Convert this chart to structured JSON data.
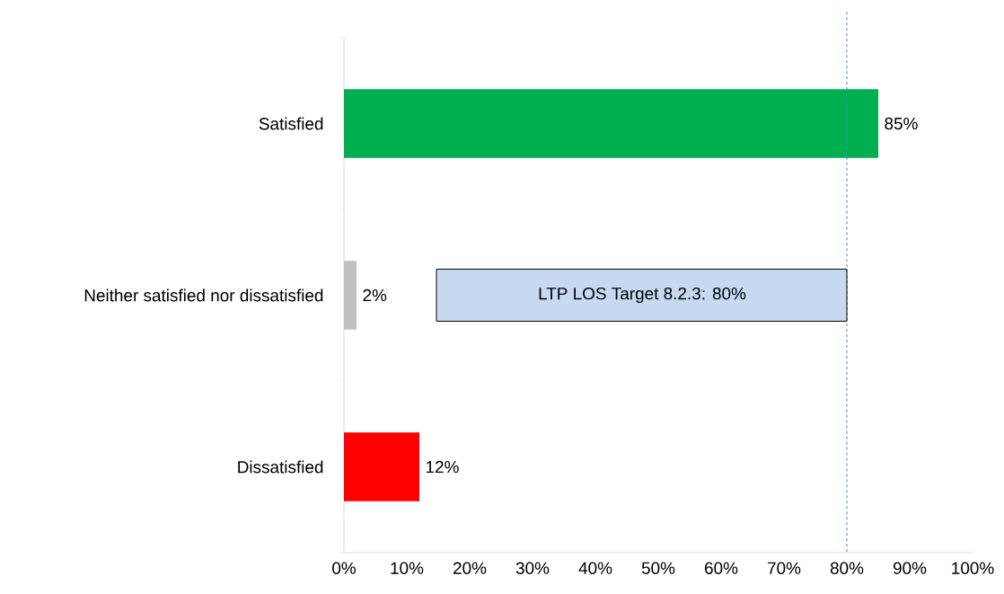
{
  "chart_data": {
    "type": "bar",
    "orientation": "horizontal",
    "categories": [
      "Satisfied",
      "Neither satisfied nor dissatisfied",
      "Dissatisfied"
    ],
    "values": [
      85,
      2,
      12
    ],
    "colors": [
      "#00b050",
      "#c0c0c0",
      "#ff0000"
    ],
    "value_labels": [
      "85%",
      "2%",
      "12%"
    ],
    "xlim": [
      0,
      100
    ],
    "xticks": [
      {
        "value": 0,
        "label": "0%"
      },
      {
        "value": 10,
        "label": "10%"
      },
      {
        "value": 20,
        "label": "20%"
      },
      {
        "value": 30,
        "label": "30%"
      },
      {
        "value": 40,
        "label": "40%"
      },
      {
        "value": 50,
        "label": "50%"
      },
      {
        "value": 60,
        "label": "60%"
      },
      {
        "value": 70,
        "label": "70%"
      },
      {
        "value": 80,
        "label": "80%"
      },
      {
        "value": 90,
        "label": "90%"
      },
      {
        "value": 100,
        "label": "100%"
      }
    ],
    "ref_lines": [
      {
        "axis": "x",
        "value": 80,
        "color": "#4a7ebb",
        "line_style": "dashed"
      }
    ],
    "annotations": [
      "LTP LOS Target 8.2.3: 80%"
    ]
  }
}
